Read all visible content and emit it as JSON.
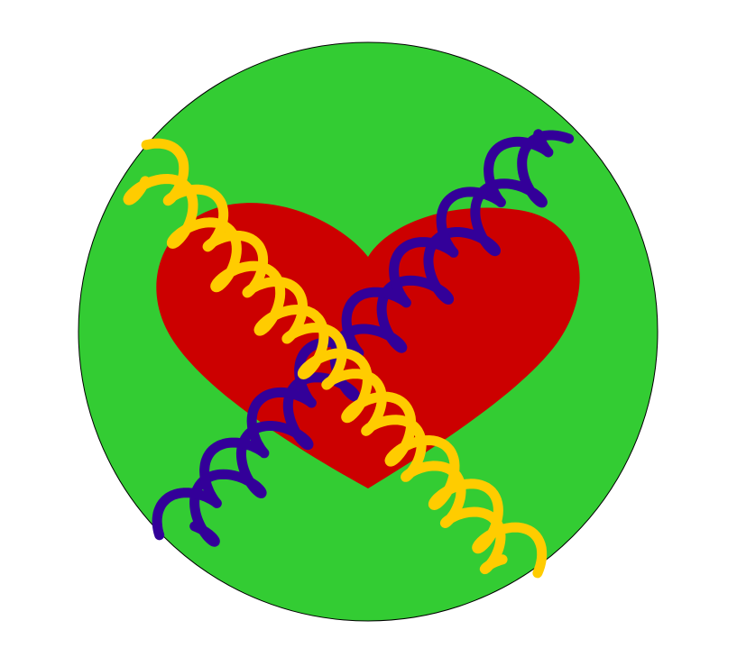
{
  "illustration": {
    "name": "heart-with-crossed-dna-helices",
    "colors": {
      "background": "#ffffff",
      "circle_fill": "#33cc33",
      "circle_stroke": "#000000",
      "heart_fill": "#cc0000",
      "helix_yellow": "#ffcc00",
      "helix_purple": "#330099"
    },
    "icons": [
      "green-circle-icon",
      "heart-icon",
      "yellow-helix-icon",
      "purple-helix-icon"
    ]
  }
}
